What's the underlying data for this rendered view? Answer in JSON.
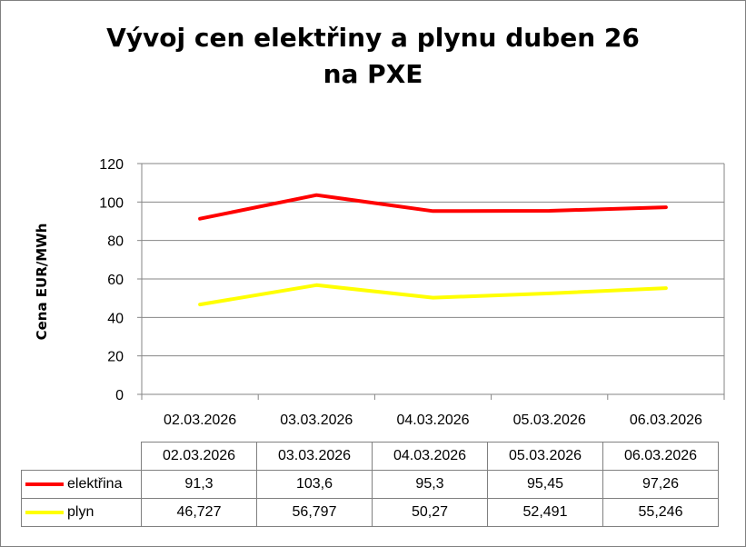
{
  "chart_data": {
    "type": "line",
    "title_lines": [
      "Vývoj cen elektřiny a plynu duben 26",
      "na PXE"
    ],
    "ylabel": "Cena EUR/MWh",
    "xlabel": "",
    "categories": [
      "02.03.2026",
      "03.03.2026",
      "04.03.2026",
      "05.03.2026",
      "06.03.2026"
    ],
    "ylim": [
      0,
      120
    ],
    "yticks": [
      0,
      20,
      40,
      60,
      80,
      100,
      120
    ],
    "grid": "horizontal",
    "legend": "data-table",
    "series": [
      {
        "name": "elektřina",
        "color": "#ff0000",
        "values": [
          91.3,
          103.6,
          95.3,
          95.45,
          97.26
        ],
        "labels": [
          "91,3",
          "103,6",
          "95,3",
          "95,45",
          "97,26"
        ]
      },
      {
        "name": "plyn",
        "color": "#ffff00",
        "values": [
          46.727,
          56.797,
          50.27,
          52.491,
          55.246
        ],
        "labels": [
          "46,727",
          "56,797",
          "50,27",
          "52,491",
          "55,246"
        ]
      }
    ]
  }
}
